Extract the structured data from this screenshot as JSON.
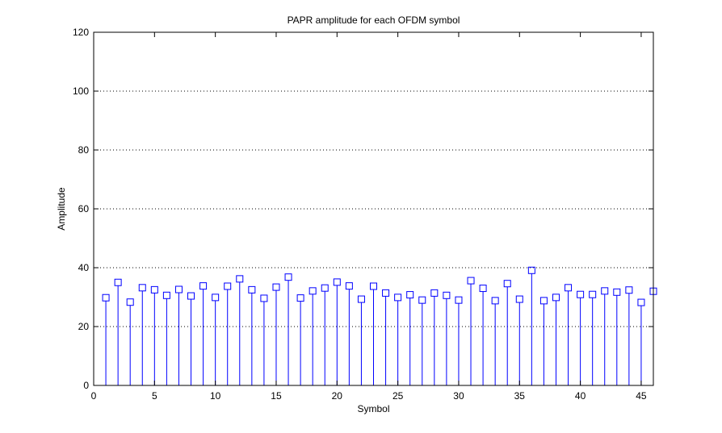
{
  "chart_data": {
    "type": "stem",
    "title": "PAPR amplitude for each OFDM symbol",
    "xlabel": "Symbol",
    "ylabel": "Amplitude",
    "xlim": [
      0,
      46
    ],
    "ylim": [
      0,
      120
    ],
    "xticks": [
      0,
      5,
      10,
      15,
      20,
      25,
      30,
      35,
      40,
      45
    ],
    "yticks": [
      0,
      20,
      40,
      60,
      80,
      100,
      120
    ],
    "grid": "horizontal-dotted",
    "marker": "square",
    "color": "#0000ff",
    "x": [
      1,
      2,
      3,
      4,
      5,
      6,
      7,
      8,
      9,
      10,
      11,
      12,
      13,
      14,
      15,
      16,
      17,
      18,
      19,
      20,
      21,
      22,
      23,
      24,
      25,
      26,
      27,
      28,
      29,
      30,
      31,
      32,
      33,
      34,
      35,
      36,
      37,
      38,
      39,
      40,
      41,
      42,
      43,
      44,
      45,
      46
    ],
    "values": [
      29.8,
      35,
      28.3,
      33.2,
      32.5,
      30.6,
      32.6,
      30.4,
      33.8,
      29.9,
      33.7,
      36.2,
      32.5,
      29.6,
      33.4,
      36.8,
      29.7,
      32.1,
      33.1,
      35.1,
      33.8,
      29.3,
      33.7,
      31.4,
      29.9,
      30.8,
      29,
      31.4,
      30.6,
      29,
      35.6,
      33,
      28.8,
      34.6,
      29.3,
      39.1,
      28.8,
      29.9,
      33.2,
      30.9,
      30.9,
      32.1,
      31.7,
      32.4,
      28.2,
      32
    ]
  }
}
